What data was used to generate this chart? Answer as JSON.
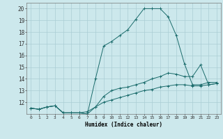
{
  "xlabel": "Humidex (Indice chaleur)",
  "bg_color": "#cce8ec",
  "grid_color": "#aacdd4",
  "line_color": "#1a6b6b",
  "xlim": [
    -0.5,
    23.5
  ],
  "ylim": [
    11,
    20.5
  ],
  "xticks": [
    0,
    1,
    2,
    3,
    4,
    5,
    6,
    7,
    8,
    9,
    10,
    11,
    12,
    13,
    14,
    15,
    16,
    17,
    18,
    19,
    20,
    21,
    22,
    23
  ],
  "yticks": [
    12,
    13,
    14,
    15,
    16,
    17,
    18,
    19,
    20
  ],
  "ytick_labels": [
    "12",
    "13",
    "14",
    "15",
    "16",
    "17",
    "18",
    "19",
    "20"
  ],
  "lines": [
    {
      "x": [
        0,
        1,
        2,
        3,
        4,
        5,
        6,
        7,
        8,
        9,
        10,
        11,
        12,
        13,
        14,
        15,
        16,
        17,
        18,
        19,
        20,
        21,
        22,
        23
      ],
      "y": [
        11.5,
        11.4,
        11.6,
        11.7,
        11.1,
        11.1,
        11.1,
        11.0,
        14.0,
        16.8,
        17.2,
        17.7,
        18.2,
        19.1,
        20.0,
        20.0,
        20.0,
        19.3,
        17.7,
        15.3,
        13.5,
        13.5,
        13.7,
        13.7
      ]
    },
    {
      "x": [
        0,
        1,
        2,
        3,
        4,
        5,
        6,
        7,
        8,
        9,
        10,
        11,
        12,
        13,
        14,
        15,
        16,
        17,
        18,
        19,
        20,
        21,
        22,
        23
      ],
      "y": [
        11.5,
        11.4,
        11.6,
        11.7,
        11.1,
        11.1,
        11.1,
        11.2,
        11.6,
        12.5,
        13.0,
        13.2,
        13.3,
        13.5,
        13.7,
        14.0,
        14.2,
        14.5,
        14.4,
        14.2,
        14.2,
        15.2,
        13.5,
        13.6
      ]
    },
    {
      "x": [
        0,
        1,
        2,
        3,
        4,
        5,
        6,
        7,
        8,
        9,
        10,
        11,
        12,
        13,
        14,
        15,
        16,
        17,
        18,
        19,
        20,
        21,
        22,
        23
      ],
      "y": [
        11.5,
        11.4,
        11.6,
        11.7,
        11.1,
        11.1,
        11.1,
        11.0,
        11.6,
        12.0,
        12.2,
        12.4,
        12.6,
        12.8,
        13.0,
        13.1,
        13.3,
        13.4,
        13.5,
        13.5,
        13.4,
        13.4,
        13.5,
        13.6
      ]
    }
  ]
}
